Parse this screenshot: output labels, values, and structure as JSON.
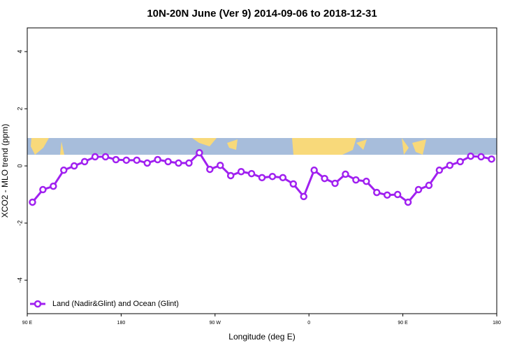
{
  "chart_data": {
    "type": "line",
    "title": "10N-20N June (Ver 9)   2014-09-06 to 2018-12-31",
    "x_label": "Longitude (deg E)",
    "y_label": "XCO2 - MLO trend (ppm)",
    "x": [
      95,
      105,
      115,
      125,
      135,
      145,
      155,
      165,
      175,
      185,
      195,
      205,
      215,
      225,
      235,
      245,
      255,
      265,
      275,
      285,
      295,
      305,
      315,
      325,
      335,
      345,
      355,
      365,
      375,
      385,
      395,
      405,
      415,
      425,
      435,
      445,
      455,
      465,
      475,
      485,
      495,
      505,
      515,
      525,
      535
    ],
    "series": [
      {
        "name": "Land (Nadir&Glint) and Ocean (Glint)",
        "color": "#a020f0",
        "values": [
          -1.27,
          -0.83,
          -0.71,
          -0.15,
          0.0,
          0.15,
          0.32,
          0.32,
          0.22,
          0.2,
          0.2,
          0.1,
          0.22,
          0.15,
          0.1,
          0.1,
          0.46,
          -0.12,
          0.02,
          -0.34,
          -0.2,
          -0.27,
          -0.41,
          -0.37,
          -0.41,
          -0.63,
          -1.07,
          -0.15,
          -0.44,
          -0.61,
          -0.29,
          -0.49,
          -0.54,
          -0.93,
          -1.02,
          -1.0,
          -1.27,
          -0.83,
          -0.68,
          -0.15,
          0.02,
          0.15,
          0.34,
          0.32,
          0.24
        ]
      }
    ],
    "xlim": [
      90,
      540
    ],
    "xticks": [
      {
        "value": 90,
        "label": "90 E"
      },
      180,
      {
        "value": 270,
        "label": "90 W"
      },
      {
        "value": 360,
        "label": "0"
      },
      {
        "value": 450,
        "label": "90 E"
      },
      {
        "value": 540,
        "label": "180"
      }
    ],
    "ylim": [
      -5.17,
      4.83
    ],
    "yticks": [
      -4,
      -2,
      0,
      2,
      4
    ],
    "legend": "bottom-left"
  }
}
